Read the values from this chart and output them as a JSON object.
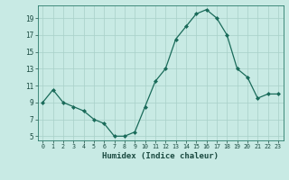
{
  "x": [
    0,
    1,
    2,
    3,
    4,
    5,
    6,
    7,
    8,
    9,
    10,
    11,
    12,
    13,
    14,
    15,
    16,
    17,
    18,
    19,
    20,
    21,
    22,
    23
  ],
  "y": [
    9.0,
    10.5,
    9.0,
    8.5,
    8.0,
    7.0,
    6.5,
    5.0,
    5.0,
    5.5,
    8.5,
    11.5,
    13.0,
    16.5,
    18.0,
    19.5,
    20.0,
    19.0,
    17.0,
    13.0,
    12.0,
    9.5,
    10.0,
    10.0
  ],
  "xlabel": "Humidex (Indice chaleur)",
  "ylim": [
    4.5,
    20.5
  ],
  "xlim": [
    -0.5,
    23.5
  ],
  "yticks": [
    5,
    7,
    9,
    11,
    13,
    15,
    17,
    19
  ],
  "xticks": [
    0,
    1,
    2,
    3,
    4,
    5,
    6,
    7,
    8,
    9,
    10,
    11,
    12,
    13,
    14,
    15,
    16,
    17,
    18,
    19,
    20,
    21,
    22,
    23
  ],
  "line_color": "#1a6b5a",
  "marker_color": "#1a6b5a",
  "bg_color": "#c8eae4",
  "grid_color": "#a8d0c8",
  "axes_color": "#2a7a6a",
  "tick_label_color": "#1a4a40",
  "xlabel_color": "#1a4a40"
}
